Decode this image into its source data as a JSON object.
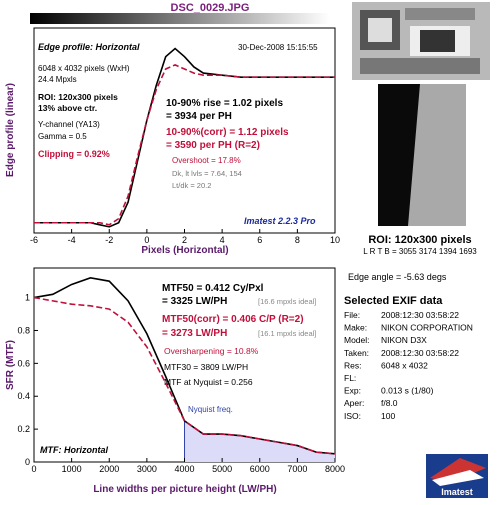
{
  "title": "DSC_0029.JPG",
  "chart_data": [
    {
      "type": "line",
      "xlabel": "Pixels (Horizontal)",
      "ylabel": "Edge profile (linear)",
      "x": [
        -6,
        -5,
        -4,
        -3,
        -2.5,
        -2,
        -1.5,
        -1,
        -0.5,
        0,
        0.5,
        1,
        1.5,
        2,
        2.5,
        3,
        4,
        5,
        6,
        7,
        8,
        9,
        10
      ],
      "series": [
        {
          "name": "Edge profile",
          "color": "#000000",
          "values": [
            0.05,
            0.05,
            0.05,
            0.05,
            0.04,
            0.03,
            0.05,
            0.15,
            0.35,
            0.55,
            0.72,
            0.86,
            0.9,
            0.86,
            0.81,
            0.78,
            0.77,
            0.76,
            0.76,
            0.76,
            0.76,
            0.76,
            0.76
          ]
        },
        {
          "name": "Edge profile (corr)",
          "color": "#c0103a",
          "dashed": true,
          "values": [
            0.05,
            0.05,
            0.05,
            0.05,
            0.05,
            0.04,
            0.07,
            0.18,
            0.37,
            0.55,
            0.7,
            0.8,
            0.82,
            0.8,
            0.78,
            0.77,
            0.77,
            0.76,
            0.76,
            0.76,
            0.76,
            0.76,
            0.76
          ]
        }
      ],
      "xlim": [
        -6,
        10
      ],
      "xticks": [
        -6,
        -4,
        -2,
        0,
        2,
        4,
        6,
        8,
        10
      ],
      "ylim": [
        0,
        1
      ],
      "annotations": [
        "Edge profile: Horizontal",
        "30-Dec-2008 15:15:55",
        "6048 x 4032 pixels (WxH)",
        "24.4 Mpxls",
        "ROI: 120x300 pixels",
        "13% above ctr.",
        "Y-channel (YA13)",
        "Gamma = 0.5",
        "Clipping = 0.92%",
        "10-90% rise = 1.02 pixels",
        "= 3934 per PH",
        "10-90%(corr) = 1.12 pixels",
        "= 3590 per PH (R=2)",
        "Overshoot = 17.8%",
        "Dk, lt lvls = 7.64, 154",
        "Lt/dk = 20.2",
        "Imatest 2.2.3 Pro"
      ]
    },
    {
      "type": "line",
      "xlabel": "Line widths per picture height (LW/PH)",
      "ylabel": "SFR (MTF)",
      "x": [
        0,
        500,
        1000,
        1500,
        2000,
        2500,
        3000,
        3500,
        4000,
        4500,
        5000,
        5500,
        6000,
        6500,
        7000,
        7500,
        8000
      ],
      "series": [
        {
          "name": "MTF",
          "color": "#000000",
          "values": [
            1.0,
            1.02,
            1.08,
            1.12,
            1.1,
            0.98,
            0.78,
            0.52,
            0.25,
            0.17,
            0.17,
            0.16,
            0.14,
            0.12,
            0.1,
            0.06,
            0.05
          ]
        },
        {
          "name": "MTF (corr)",
          "color": "#c0103a",
          "dashed": true,
          "values": [
            1.0,
            0.98,
            0.96,
            0.95,
            0.93,
            0.85,
            0.7,
            0.48,
            0.25,
            0.17,
            0.17,
            0.16,
            0.14,
            0.12,
            0.1,
            0.06,
            0.05
          ]
        }
      ],
      "xlim": [
        0,
        8000
      ],
      "xticks": [
        0,
        1000,
        2000,
        3000,
        4000,
        5000,
        6000,
        7000,
        8000
      ],
      "ylim": [
        0,
        1.18
      ],
      "yticks": [
        0,
        0.2,
        0.4,
        0.6,
        0.8,
        1
      ],
      "nyquist_x": 4000,
      "annotations": [
        "MTF50 = 0.412 Cy/Pxl",
        "= 3325 LW/PH",
        "[16.6 mpxls ideal]",
        "MTF50(corr) = 0.406 C/P (R=2)",
        "= 3273 LW/PH",
        "[16.1 mpxls ideal]",
        "Oversharpening = 10.8%",
        "MTF30 = 3809 LW/PH",
        "MTF at Nyquist = 0.256",
        "Nyquist freq.",
        "MTF: Horizontal"
      ]
    }
  ],
  "roi": {
    "label": "ROI: 120x300 pixels",
    "bounds": "L R T B = 3055 3174 1394 1693",
    "edge_angle": "Edge angle = -5.63 degs"
  },
  "exif": {
    "heading": "Selected EXIF data",
    "rows": [
      [
        "File:",
        "2008:12:30 03:58:22"
      ],
      [
        "Make:",
        "NIKON CORPORATION"
      ],
      [
        "Model:",
        "NIKON D3X"
      ],
      [
        "Taken:",
        "2008:12:30 03:58:22"
      ],
      [
        "Res:",
        "6048 x 4032"
      ],
      [
        "FL:"
      ],
      [
        "Exp:",
        "0.013 s (1/80)"
      ],
      [
        "Aper:",
        "f/8.0"
      ],
      [
        "ISO:",
        "100"
      ]
    ]
  },
  "logo": "Imatest"
}
